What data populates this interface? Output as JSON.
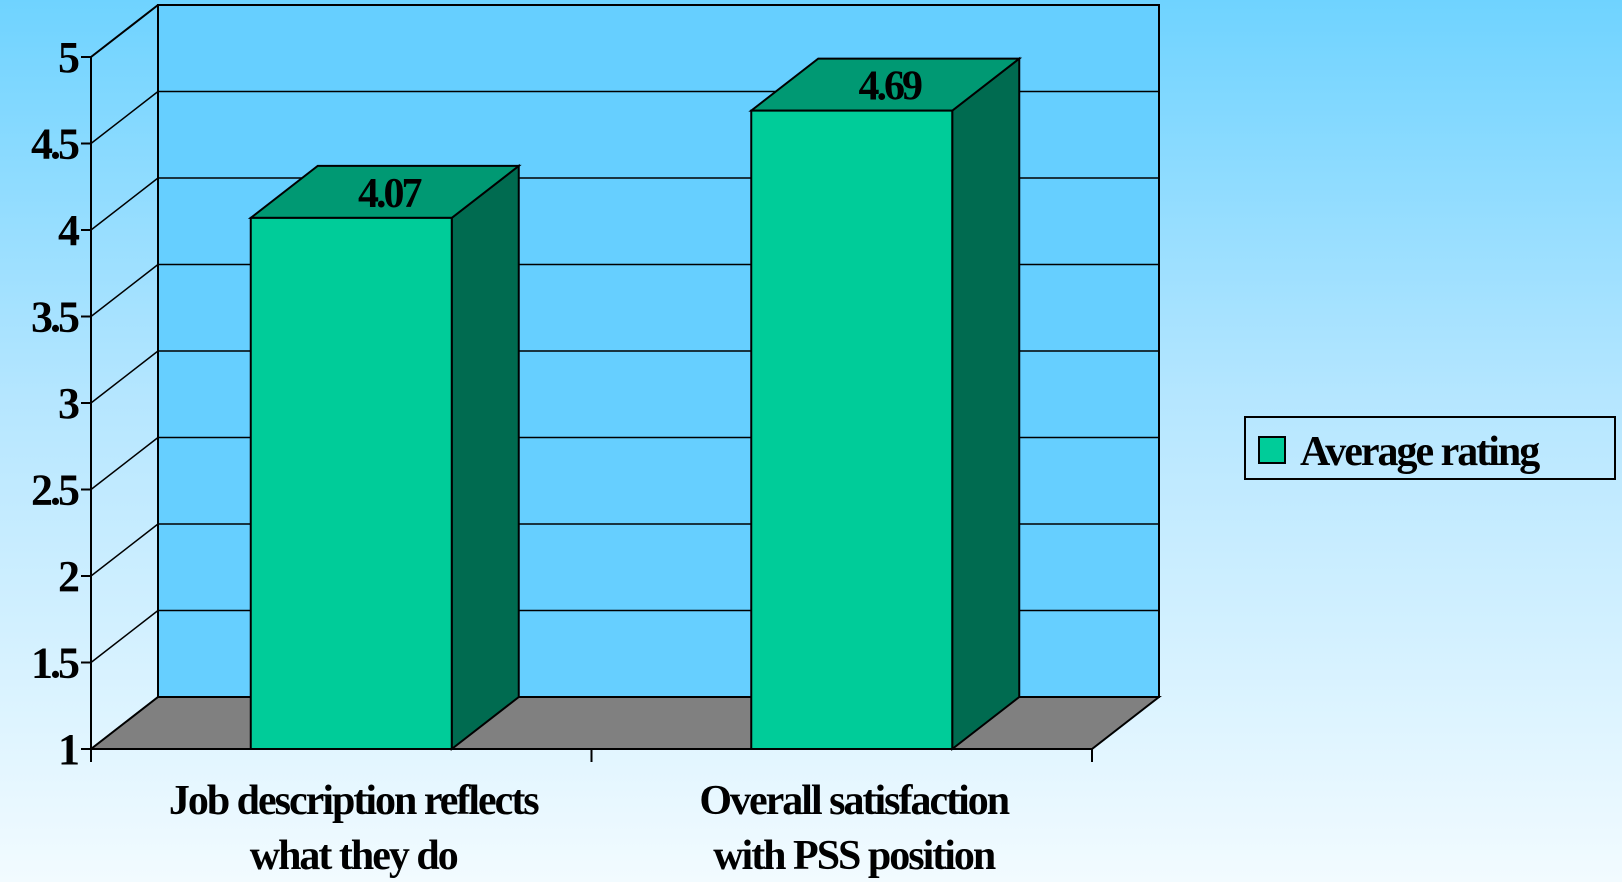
{
  "chart_data": {
    "type": "bar",
    "categories": [
      [
        "Job description reflects",
        "what they do"
      ],
      [
        "Overall satisfaction",
        "with PSS position"
      ]
    ],
    "series": [
      {
        "name": "Average rating",
        "values": [
          4.07,
          4.69
        ]
      }
    ],
    "data_labels": [
      "4.07",
      "4.69"
    ],
    "ylim": [
      1,
      5
    ],
    "yticks": [
      1,
      1.5,
      2,
      2.5,
      3,
      3.5,
      4,
      4.5,
      5
    ],
    "ytick_labels": [
      "1",
      "1.5",
      "2",
      "2.5",
      "3",
      "3.5",
      "4",
      "4.5",
      "5"
    ],
    "grid": true,
    "style": "3d",
    "legend": "right",
    "colors": {
      "bar_front": "#00cc99",
      "bar_side": "#006b50",
      "bar_top": "#009973",
      "floor": "#808080",
      "wall": "#66cfff",
      "grid": "#000000"
    }
  }
}
